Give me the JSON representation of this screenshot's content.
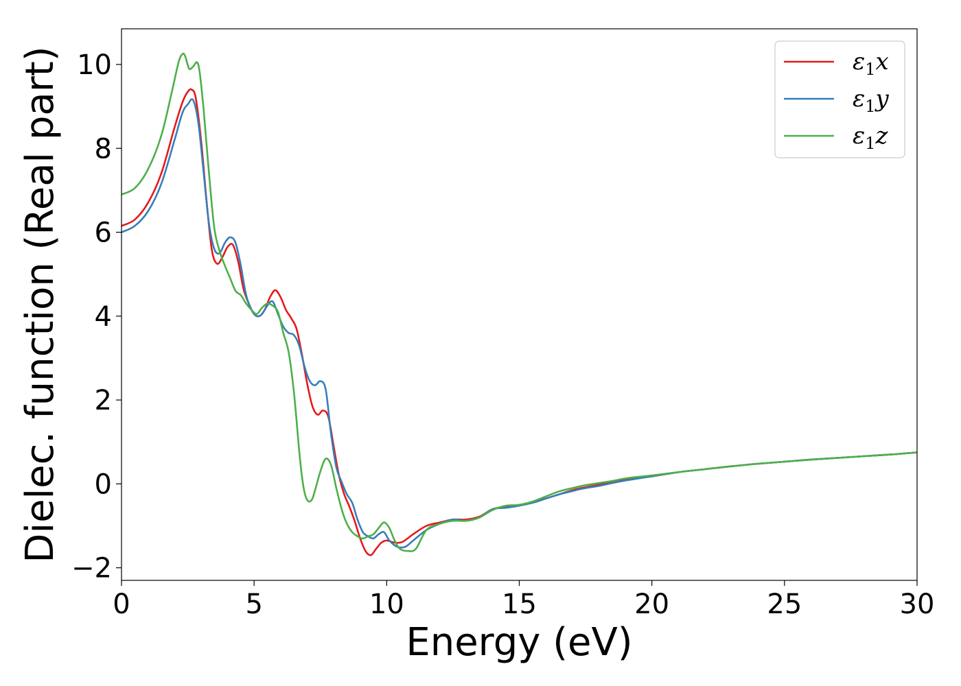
{
  "chart_data": {
    "type": "line",
    "title": "",
    "xlabel": "Energy (eV)",
    "ylabel": "Dielec. function (Real part)",
    "xlim": [
      0,
      30
    ],
    "ylim": [
      -2.3,
      10.85
    ],
    "xticks": [
      0,
      5,
      10,
      15,
      20,
      25,
      30
    ],
    "yticks": [
      -2,
      0,
      2,
      4,
      6,
      8,
      10
    ],
    "ytick_labels": [
      "−2",
      "0",
      "2",
      "4",
      "6",
      "8",
      "10"
    ],
    "grid": false,
    "legend_position": "top-right",
    "series": [
      {
        "name": "ε1x",
        "legend": {
          "base": "ε",
          "sub": "1",
          "suffix": "x"
        },
        "color": "#e41a1c",
        "x": [
          0,
          0.5,
          1.0,
          1.5,
          2.0,
          2.3,
          2.5,
          2.65,
          2.8,
          3.0,
          3.2,
          3.4,
          3.6,
          3.8,
          4.0,
          4.2,
          4.4,
          4.6,
          4.8,
          5.0,
          5.2,
          5.4,
          5.6,
          5.8,
          6.0,
          6.2,
          6.4,
          6.6,
          6.8,
          7.0,
          7.2,
          7.4,
          7.6,
          7.8,
          8.0,
          8.2,
          8.4,
          8.6,
          8.8,
          9.0,
          9.2,
          9.4,
          9.6,
          9.8,
          10.0,
          10.3,
          10.6,
          11.0,
          11.5,
          12.0,
          12.5,
          13.0,
          13.5,
          14.0,
          14.5,
          15.0,
          15.5,
          16.0,
          16.5,
          17.0,
          17.5,
          18.0,
          18.5,
          19.0,
          19.5,
          20.0,
          21.0,
          22.0,
          23.0,
          24.0,
          25.0,
          26.0,
          27.0,
          28.0,
          29.0,
          30.0
        ],
        "y": [
          6.15,
          6.3,
          6.7,
          7.4,
          8.5,
          9.1,
          9.35,
          9.4,
          9.2,
          8.2,
          6.8,
          5.6,
          5.25,
          5.4,
          5.65,
          5.7,
          5.3,
          4.65,
          4.3,
          4.05,
          4.0,
          4.15,
          4.45,
          4.62,
          4.45,
          4.15,
          3.95,
          3.7,
          3.1,
          2.4,
          1.85,
          1.65,
          1.75,
          1.6,
          0.9,
          0.2,
          -0.25,
          -0.55,
          -0.9,
          -1.3,
          -1.6,
          -1.7,
          -1.55,
          -1.4,
          -1.35,
          -1.4,
          -1.38,
          -1.2,
          -1.0,
          -0.92,
          -0.85,
          -0.85,
          -0.78,
          -0.6,
          -0.55,
          -0.5,
          -0.45,
          -0.35,
          -0.25,
          -0.15,
          -0.08,
          -0.02,
          0.05,
          0.1,
          0.15,
          0.18,
          0.28,
          0.35,
          0.42,
          0.48,
          0.53,
          0.58,
          0.62,
          0.66,
          0.7,
          0.75
        ]
      },
      {
        "name": "ε1y",
        "legend": {
          "base": "ε",
          "sub": "1",
          "suffix": "y"
        },
        "color": "#377eb8",
        "x": [
          0,
          0.5,
          1.0,
          1.5,
          2.0,
          2.3,
          2.5,
          2.7,
          2.9,
          3.1,
          3.3,
          3.5,
          3.7,
          3.9,
          4.1,
          4.3,
          4.5,
          4.7,
          4.9,
          5.1,
          5.3,
          5.5,
          5.7,
          5.9,
          6.1,
          6.3,
          6.5,
          6.7,
          6.9,
          7.1,
          7.3,
          7.5,
          7.7,
          7.9,
          8.1,
          8.3,
          8.5,
          8.7,
          8.9,
          9.1,
          9.3,
          9.5,
          9.7,
          9.9,
          10.1,
          10.4,
          10.7,
          11.0,
          11.5,
          12.0,
          12.5,
          13.0,
          13.5,
          14.0,
          14.5,
          15.0,
          15.5,
          16.0,
          16.5,
          17.0,
          17.5,
          18.0,
          18.5,
          19.0,
          19.5,
          20.0,
          21.0,
          22.0,
          23.0,
          24.0,
          25.0,
          26.0,
          27.0,
          28.0,
          29.0,
          30.0
        ],
        "y": [
          6.0,
          6.15,
          6.5,
          7.15,
          8.2,
          8.85,
          9.05,
          9.15,
          8.6,
          7.4,
          6.2,
          5.6,
          5.5,
          5.75,
          5.88,
          5.75,
          5.2,
          4.5,
          4.15,
          4.0,
          4.05,
          4.25,
          4.35,
          4.05,
          3.75,
          3.6,
          3.55,
          3.3,
          2.8,
          2.45,
          2.35,
          2.45,
          2.25,
          1.2,
          0.4,
          0.05,
          -0.25,
          -0.45,
          -0.85,
          -1.15,
          -1.25,
          -1.3,
          -1.2,
          -1.15,
          -1.35,
          -1.5,
          -1.5,
          -1.35,
          -1.1,
          -0.95,
          -0.85,
          -0.88,
          -0.8,
          -0.6,
          -0.57,
          -0.52,
          -0.45,
          -0.35,
          -0.25,
          -0.17,
          -0.1,
          -0.05,
          0.02,
          0.08,
          0.13,
          0.18,
          0.28,
          0.35,
          0.42,
          0.48,
          0.53,
          0.58,
          0.62,
          0.66,
          0.7,
          0.75
        ]
      },
      {
        "name": "ε1z",
        "legend": {
          "base": "ε",
          "sub": "1",
          "suffix": "z"
        },
        "color": "#4daf4a",
        "x": [
          0,
          0.5,
          1.0,
          1.5,
          1.9,
          2.15,
          2.3,
          2.4,
          2.55,
          2.7,
          2.85,
          2.95,
          3.1,
          3.3,
          3.5,
          3.7,
          3.9,
          4.1,
          4.3,
          4.5,
          4.7,
          4.9,
          5.1,
          5.3,
          5.5,
          5.7,
          5.9,
          6.1,
          6.3,
          6.5,
          6.7,
          6.8,
          6.9,
          7.0,
          7.1,
          7.2,
          7.3,
          7.5,
          7.7,
          7.9,
          8.1,
          8.3,
          8.5,
          8.7,
          8.9,
          9.1,
          9.3,
          9.5,
          9.7,
          9.9,
          10.1,
          10.3,
          10.5,
          10.8,
          11.1,
          11.5,
          12.0,
          12.5,
          13.0,
          13.5,
          14.0,
          14.5,
          15.0,
          15.5,
          16.0,
          16.5,
          17.0,
          17.5,
          18.0,
          18.5,
          19.0,
          19.5,
          20.0,
          21.0,
          22.0,
          23.0,
          24.0,
          25.0,
          26.0,
          27.0,
          28.0,
          29.0,
          30.0
        ],
        "y": [
          6.9,
          7.05,
          7.5,
          8.3,
          9.35,
          10.05,
          10.25,
          10.2,
          9.9,
          9.95,
          10.05,
          9.8,
          8.9,
          7.4,
          6.1,
          5.55,
          5.2,
          4.9,
          4.6,
          4.5,
          4.3,
          4.15,
          4.05,
          4.2,
          4.3,
          4.25,
          4.1,
          3.6,
          3.15,
          2.2,
          0.8,
          0.2,
          -0.2,
          -0.38,
          -0.42,
          -0.35,
          -0.15,
          0.3,
          0.6,
          0.45,
          -0.1,
          -0.6,
          -0.95,
          -1.15,
          -1.25,
          -1.3,
          -1.25,
          -1.2,
          -1.05,
          -0.92,
          -1.05,
          -1.35,
          -1.55,
          -1.6,
          -1.55,
          -1.1,
          -0.95,
          -0.88,
          -0.88,
          -0.8,
          -0.62,
          -0.52,
          -0.5,
          -0.42,
          -0.3,
          -0.18,
          -0.1,
          -0.03,
          0.02,
          0.07,
          0.13,
          0.17,
          0.2,
          0.28,
          0.35,
          0.42,
          0.48,
          0.53,
          0.58,
          0.62,
          0.66,
          0.7,
          0.75
        ]
      }
    ]
  }
}
